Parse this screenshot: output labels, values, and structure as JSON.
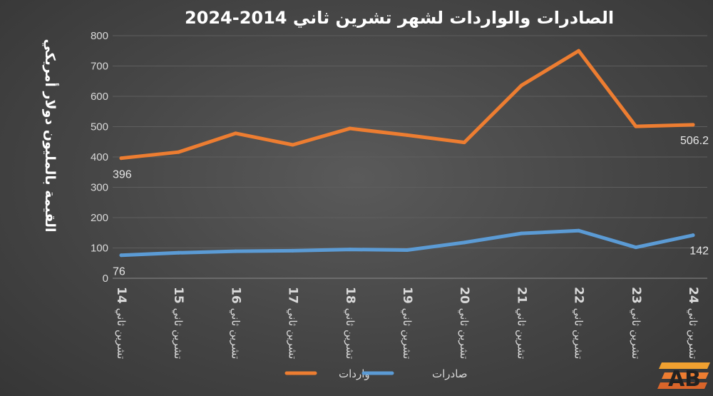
{
  "chart_data": {
    "type": "line",
    "title": "الصادرات والواردات لشهر تشرين ثاني 2014-2024",
    "ylabel": "القيمة بالمليون دولار أمريكي",
    "xlabel": "",
    "ylim": [
      0,
      800
    ],
    "yticks": [
      0,
      100,
      200,
      300,
      400,
      500,
      600,
      700,
      800
    ],
    "grid": true,
    "legend_position": "bottom",
    "categories": [
      {
        "text": "تشرين ثاني",
        "num": "14"
      },
      {
        "text": "تشرين ثاني",
        "num": "15"
      },
      {
        "text": "تشرين ثاني",
        "num": "16"
      },
      {
        "text": "تشرين ثاني",
        "num": "17"
      },
      {
        "text": "تشرين ثاني",
        "num": "18"
      },
      {
        "text": "تشرين ثاني",
        "num": "19"
      },
      {
        "text": "تشرين ثاني",
        "num": "20"
      },
      {
        "text": "تشرين ثاني",
        "num": "21"
      },
      {
        "text": "تشرين ثاني",
        "num": "22"
      },
      {
        "text": "تشرين ثاني",
        "num": "23"
      },
      {
        "text": "تشرين ثاني",
        "num": "24"
      }
    ],
    "series": [
      {
        "name": "واردات",
        "color": "#ed7d31",
        "values": [
          396,
          416,
          478,
          440,
          494,
          472,
          448,
          636,
          750,
          501,
          506.2
        ],
        "labels": {
          "first": "396",
          "last": "506.2"
        }
      },
      {
        "name": "صادرات",
        "color": "#5b9bd5",
        "values": [
          76,
          84,
          89,
          91,
          95,
          93,
          118,
          148,
          157,
          102,
          142
        ],
        "labels": {
          "first": "76",
          "last": "142"
        }
      }
    ]
  },
  "logo": {
    "text": "AB",
    "icon": "ab-logo-icon"
  }
}
